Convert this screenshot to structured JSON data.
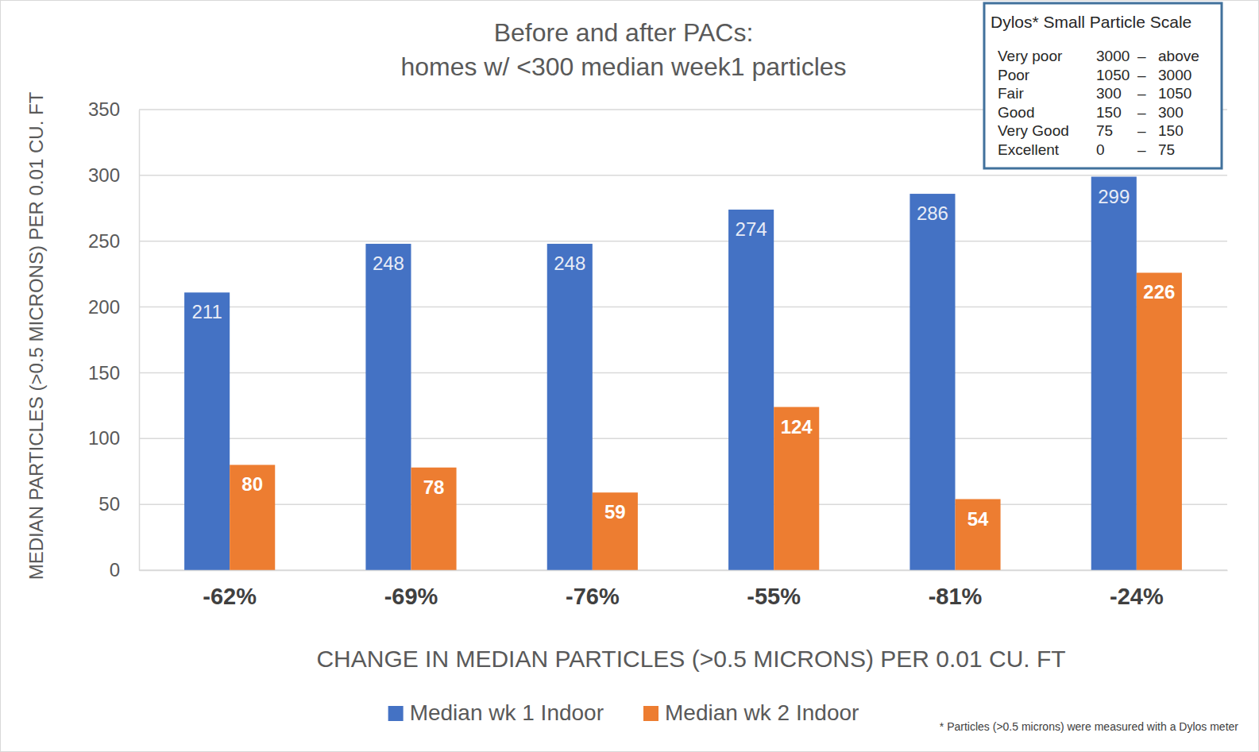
{
  "chart_data": {
    "type": "bar",
    "title": [
      "Before and after PACs:",
      "homes w/ <300 median week1 particles"
    ],
    "x_label": "CHANGE IN MEDIAN PARTICLES (>0.5 MICRONS)  PER 0.01 CU. FT",
    "y_label": "MEDIAN PARTICLES (>0.5 MICRONS)  PER 0.01 CU. FT",
    "categories": [
      "-62%",
      "-69%",
      "-76%",
      "-55%",
      "-81%",
      "-24%"
    ],
    "series": [
      {
        "name": "Median wk 1 Indoor",
        "color": "#4472c4",
        "values": [
          211,
          248,
          248,
          274,
          286,
          299
        ]
      },
      {
        "name": "Median wk 2 Indoor",
        "color": "#ed7d31",
        "values": [
          80,
          78,
          59,
          124,
          54,
          226
        ]
      }
    ],
    "ylim": [
      0,
      350
    ],
    "yticks": [
      0,
      50,
      100,
      150,
      200,
      250,
      300,
      350
    ],
    "grid": true,
    "legend": "bottom",
    "data_labels": true,
    "annotations": {
      "scale_box": {
        "title": "Dylos* Small Particle Scale",
        "rows": [
          [
            "Very poor",
            "3000",
            "–",
            "above"
          ],
          [
            "Poor",
            "1050",
            "–",
            "3000"
          ],
          [
            "Fair",
            "300",
            "–",
            "1050"
          ],
          [
            "Good",
            "150",
            "–",
            "300"
          ],
          [
            "Very Good",
            "75",
            "–",
            "150"
          ],
          [
            "Excellent",
            "0",
            "–",
            "75"
          ]
        ]
      },
      "footnote": "* Particles (>0.5 microns) were measured with a Dylos meter"
    }
  }
}
